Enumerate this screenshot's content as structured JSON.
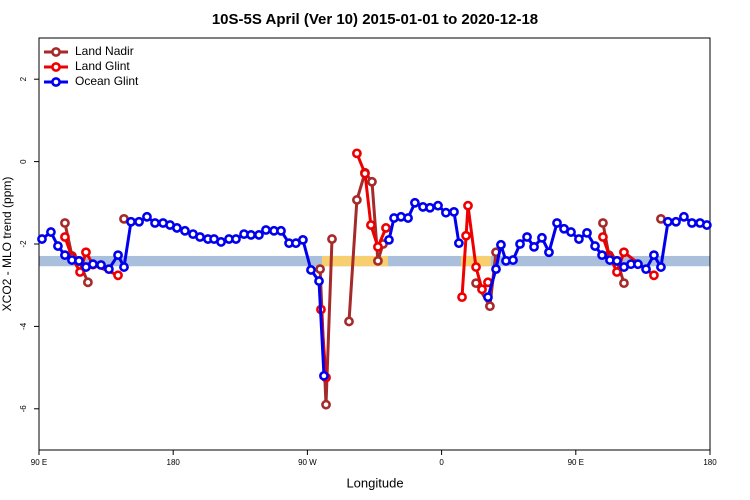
{
  "chart_data": {
    "type": "line",
    "title": "10S-5S April (Ver 10)   2015-01-01 to 2020-12-18",
    "x_label": "Longitude",
    "y_label": "XCO2 - MLO trend (ppm)",
    "xlim": [
      90,
      540
    ],
    "ylim": [
      -7,
      3
    ],
    "xticks": [
      {
        "value": 90,
        "label": "90 E"
      },
      180,
      {
        "value": 270,
        "label": "90 W"
      },
      {
        "value": 360,
        "label": "0"
      },
      {
        "value": 450,
        "label": "90 E"
      },
      {
        "value": 540,
        "label": "180"
      }
    ],
    "yticks": [
      -6,
      -4,
      -2,
      0,
      2
    ],
    "legend": "top-left",
    "reference_band": {
      "ylim": [
        -2.54,
        -2.29
      ],
      "color": "#a9bfdc"
    },
    "highlight_ranges": {
      "color": "#f8cf6e",
      "ranges": [
        [
          279.8,
          324.0
        ],
        [
          373.0,
          393.1
        ]
      ]
    },
    "series": [
      {
        "name": "Land Nadir",
        "color": "#a52a2a",
        "x": [
          107.4,
          112.1,
          116.8,
          122.8,
          null,
          147.0,
          null,
          278.5,
          282.5,
          286.5,
          null,
          297.9,
          303.2,
          308.6,
          313.3,
          317.3,
          320.7,
          null,
          383.1,
          392.4,
          396.5,
          null,
          468.2,
          472.2,
          477.6,
          482.3,
          null,
          507.1
        ],
        "values": [
          -1.49,
          -2.29,
          -2.41,
          -2.93,
          null,
          -1.39,
          null,
          -2.61,
          -5.9,
          -1.88,
          null,
          -3.88,
          -0.93,
          -0.27,
          -0.49,
          -2.41,
          -2.0,
          null,
          -2.95,
          -3.51,
          -2.2,
          null,
          -1.49,
          -2.27,
          -2.41,
          -2.95,
          null,
          -1.39
        ]
      },
      {
        "name": "Land Glint",
        "color": "#ee0000",
        "x": [
          107.4,
          112.1,
          117.5,
          121.5,
          126.2,
          143.0,
          null,
          279.1,
          282.5,
          null,
          303.2,
          308.6,
          312.6,
          317.3,
          322.7,
          null,
          373.7,
          376.4,
          377.7,
          383.1,
          387.1,
          391.1,
          null,
          468.2,
          472.9,
          477.6,
          482.3,
          502.4
        ],
        "values": [
          -1.83,
          -2.32,
          -2.68,
          -2.2,
          -2.5,
          -2.76,
          null,
          -3.59,
          -5.24,
          null,
          0.2,
          -0.29,
          -1.54,
          -2.07,
          -1.61,
          null,
          -3.29,
          -1.8,
          -1.07,
          -2.56,
          -3.1,
          -2.93,
          null,
          -1.83,
          -2.32,
          -2.68,
          -2.2,
          -2.76
        ]
      },
      {
        "name": "Ocean Glint",
        "color": "#0000ee",
        "x": [
          92.0,
          98.0,
          102.7,
          107.4,
          112.1,
          116.8,
          121.5,
          126.2,
          131.6,
          136.9,
          143.0,
          147.0,
          151.7,
          157.1,
          162.4,
          167.8,
          173.2,
          177.9,
          182.5,
          187.9,
          193.3,
          198.0,
          203.3,
          207.4,
          212.1,
          217.4,
          222.1,
          227.5,
          232.2,
          237.5,
          242.2,
          247.6,
          252.3,
          257.7,
          262.3,
          267.0,
          272.4,
          277.8,
          281.1,
          null,
          324.7,
          328.1,
          332.8,
          337.5,
          342.1,
          347.5,
          352.2,
          357.6,
          362.9,
          368.3,
          371.6,
          null,
          391.1,
          396.5,
          399.8,
          403.2,
          407.9,
          412.6,
          417.3,
          422.0,
          427.3,
          432.0,
          437.4,
          442.1,
          446.8,
          452.1,
          457.5,
          462.9,
          467.6,
          472.9,
          477.6,
          482.3,
          487.0,
          491.7,
          497.1,
          502.4,
          507.1,
          511.8,
          517.2,
          522.5,
          527.9,
          533.3,
          537.9
        ],
        "values": [
          -1.88,
          -1.71,
          -2.05,
          -2.27,
          -2.39,
          -2.41,
          -2.56,
          -2.49,
          -2.51,
          -2.61,
          -2.27,
          -2.56,
          -1.46,
          -1.46,
          -1.34,
          -1.49,
          -1.49,
          -1.54,
          -1.61,
          -1.68,
          -1.76,
          -1.83,
          -1.88,
          -1.88,
          -1.95,
          -1.88,
          -1.88,
          -1.76,
          -1.78,
          -1.78,
          -1.66,
          -1.68,
          -1.68,
          -1.98,
          -1.98,
          -1.9,
          -2.63,
          -2.9,
          -5.2,
          null,
          -1.9,
          -1.37,
          -1.34,
          -1.37,
          -1.0,
          -1.1,
          -1.12,
          -1.07,
          -1.24,
          -1.22,
          -1.98,
          null,
          -3.29,
          -2.61,
          -2.02,
          -2.41,
          -2.39,
          -2.0,
          -1.83,
          -2.07,
          -1.85,
          -2.2,
          -1.49,
          -1.63,
          -1.71,
          -1.88,
          -1.73,
          -2.05,
          -2.27,
          -2.39,
          -2.41,
          -2.56,
          -2.49,
          -2.49,
          -2.61,
          -2.27,
          -2.56,
          -1.46,
          -1.46,
          -1.34,
          -1.49,
          -1.49,
          -1.54
        ]
      }
    ]
  }
}
